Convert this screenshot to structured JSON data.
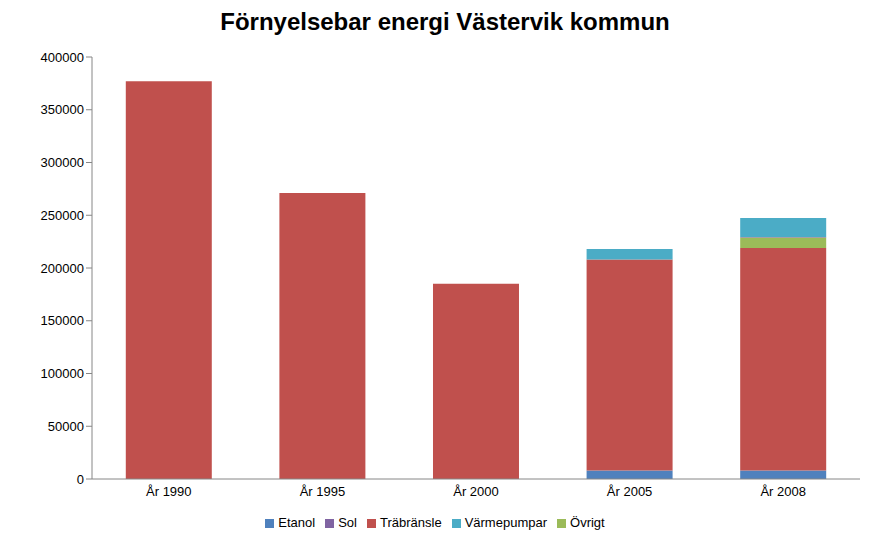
{
  "chart_data": {
    "type": "bar",
    "title": "Förnyelsebar energi Västervik kommun",
    "categories": [
      "År 1990",
      "År 1995",
      "År 2000",
      "År 2005",
      "År 2008"
    ],
    "series": [
      {
        "name": "Etanol",
        "color": "#4f81bd",
        "values": [
          0,
          0,
          0,
          8000,
          8000
        ]
      },
      {
        "name": "Träbränsle",
        "color": "#c0504d",
        "values": [
          377000,
          271000,
          185000,
          200000,
          211000
        ]
      },
      {
        "name": "Övrigt",
        "color": "#9bbb59",
        "values": [
          0,
          0,
          0,
          0,
          10000
        ]
      },
      {
        "name": "Sol",
        "color": "#8064a2",
        "values": [
          0,
          0,
          0,
          0,
          500
        ]
      },
      {
        "name": "Värmepumpar",
        "color": "#4bacc6",
        "values": [
          0,
          0,
          0,
          10000,
          18000
        ]
      }
    ],
    "ylim": [
      0,
      400000
    ],
    "yticks": [
      0,
      50000,
      100000,
      150000,
      200000,
      250000,
      300000,
      350000,
      400000
    ],
    "stacked": true,
    "grid": false,
    "legend": "bottom"
  }
}
